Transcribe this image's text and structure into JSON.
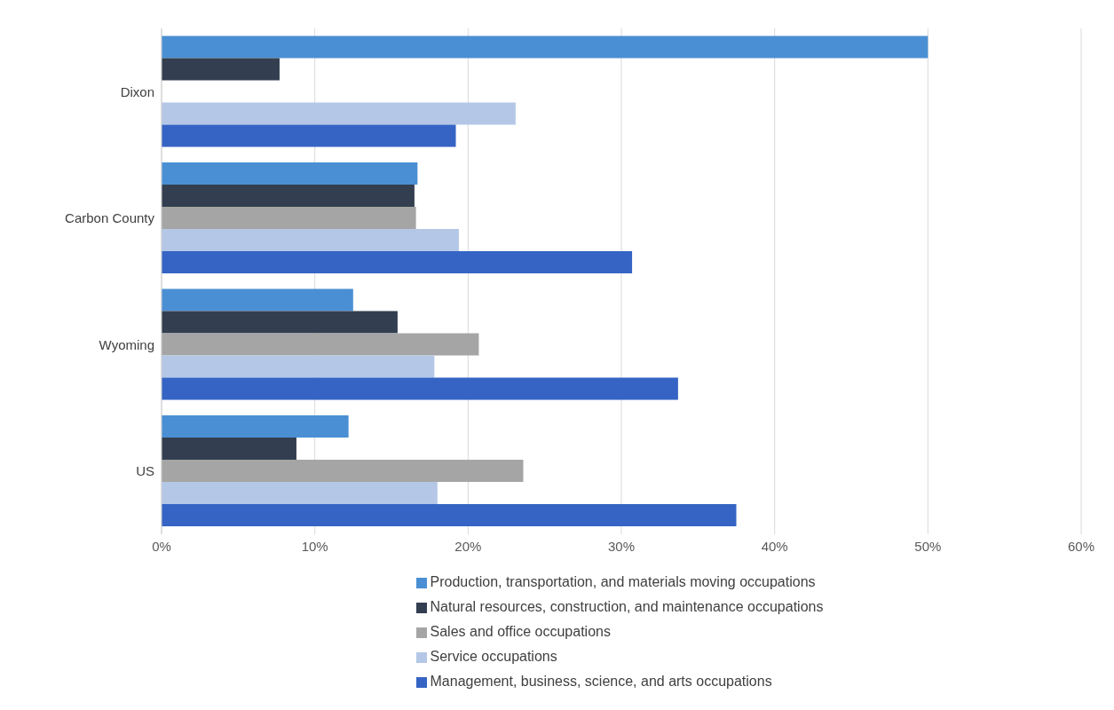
{
  "chart_data": {
    "type": "bar",
    "orientation": "horizontal",
    "categories": [
      "Dixon",
      "Carbon County",
      "Wyoming",
      "US"
    ],
    "series": [
      {
        "name": "Production, transportation, and materials moving occupations",
        "color": "#4a8fd4",
        "values": [
          50,
          16.7,
          12.5,
          12.2
        ]
      },
      {
        "name": "Natural resources, construction, and maintenance occupations",
        "color": "#333f50",
        "values": [
          7.7,
          16.5,
          15.4,
          8.8
        ]
      },
      {
        "name": "Sales and office occupations",
        "color": "#a5a5a5",
        "values": [
          0,
          16.6,
          20.7,
          23.6
        ]
      },
      {
        "name": "Service occupations",
        "color": "#b4c7e7",
        "values": [
          23.1,
          19.4,
          17.8,
          18.0
        ]
      },
      {
        "name": "Management, business, science, and arts occupations",
        "color": "#3564c4",
        "values": [
          19.2,
          30.7,
          33.7,
          37.5
        ]
      }
    ],
    "xlim": [
      0,
      60
    ],
    "xticks": [
      {
        "value": 0,
        "label": "0%"
      },
      {
        "value": 10,
        "label": "10%"
      },
      {
        "value": 20,
        "label": "20%"
      },
      {
        "value": 30,
        "label": "30%"
      },
      {
        "value": 40,
        "label": "40%"
      },
      {
        "value": 50,
        "label": "50%"
      },
      {
        "value": 60,
        "label": "60%"
      }
    ],
    "grid": "x",
    "legend": "bottom"
  }
}
